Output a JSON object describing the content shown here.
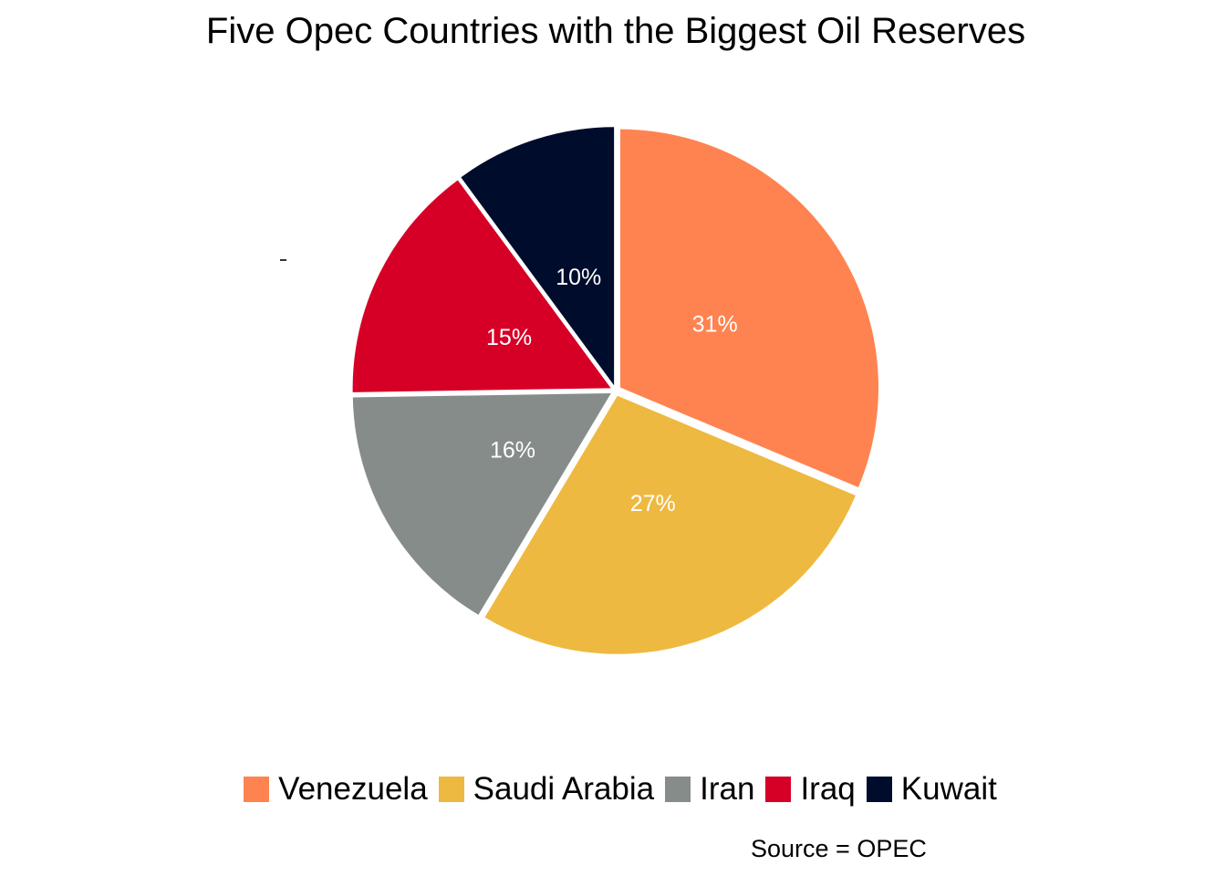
{
  "chart_data": {
    "type": "pie",
    "title": "Five Opec Countries with the Biggest Oil Reserves",
    "categories": [
      "Venezuela",
      "Saudi Arabia",
      "Iran",
      "Iraq",
      "Kuwait"
    ],
    "values": [
      31,
      27,
      16,
      15,
      10
    ],
    "labels": [
      "31%",
      "27%",
      "16%",
      "15%",
      "10%"
    ],
    "colors": [
      "#FF8350",
      "#EEB940",
      "#868C8A",
      "#D60027",
      "#000C2B"
    ],
    "legend_position": "bottom",
    "start": "top",
    "direction": "clockwise",
    "exploded": true,
    "caption": "Source = OPEC"
  }
}
